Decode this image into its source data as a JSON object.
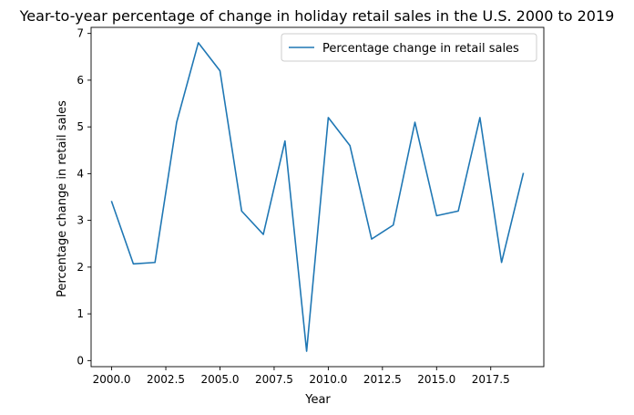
{
  "chart_data": {
    "type": "line",
    "title": "Year-to-year percentage of change in holiday retail sales in the U.S. 2000 to 2019",
    "xlabel": "Year",
    "ylabel": "Percentage change in retail sales",
    "xlim": [
      1999.05,
      2019.95
    ],
    "ylim": [
      -0.13,
      7.13
    ],
    "xticks": [
      2000.0,
      2002.5,
      2005.0,
      2007.5,
      2010.0,
      2012.5,
      2015.0,
      2017.5
    ],
    "xtick_labels": [
      "2000.0",
      "2002.5",
      "2005.0",
      "2007.5",
      "2010.0",
      "2012.5",
      "2015.0",
      "2017.5"
    ],
    "yticks": [
      0,
      1,
      2,
      3,
      4,
      5,
      6,
      7
    ],
    "ytick_labels": [
      "0",
      "1",
      "2",
      "3",
      "4",
      "5",
      "6",
      "7"
    ],
    "grid": false,
    "legend_position": "top-right",
    "series": [
      {
        "name": "Percentage change in retail sales",
        "color": "#1f77b4",
        "x": [
          2000,
          2001,
          2002,
          2003,
          2004,
          2005,
          2006,
          2007,
          2008,
          2009,
          2010,
          2011,
          2012,
          2013,
          2014,
          2015,
          2016,
          2017,
          2018,
          2019
        ],
        "y": [
          3.4,
          2.07,
          2.1,
          5.1,
          6.8,
          6.2,
          3.2,
          2.7,
          4.7,
          0.2,
          5.2,
          4.6,
          2.6,
          2.9,
          5.1,
          3.1,
          3.2,
          5.2,
          2.1,
          4.0
        ]
      }
    ]
  }
}
